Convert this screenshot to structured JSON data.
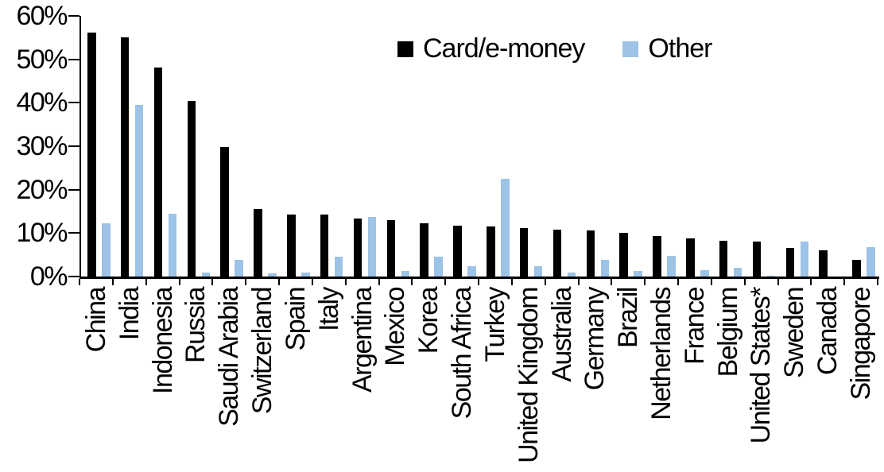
{
  "chart_data": {
    "type": "bar",
    "title": "",
    "xlabel": "",
    "ylabel": "",
    "ylim": [
      0,
      60
    ],
    "grid": false,
    "legend_position": "top-center",
    "yticks": [
      {
        "value": 0,
        "label": "0%"
      },
      {
        "value": 10,
        "label": "10%"
      },
      {
        "value": 20,
        "label": "20%"
      },
      {
        "value": 30,
        "label": "30%"
      },
      {
        "value": 40,
        "label": "40%"
      },
      {
        "value": 50,
        "label": "50%"
      },
      {
        "value": 60,
        "label": "60%"
      }
    ],
    "categories": [
      "China",
      "India",
      "Indonesia",
      "Russia",
      "Saudi Arabia",
      "Switzerland",
      "Spain",
      "Italy",
      "Argentina",
      "Mexico",
      "Korea",
      "South Africa",
      "Turkey",
      "United Kingdom",
      "Australia",
      "Germany",
      "Brazil",
      "Netherlands",
      "France",
      "Belgium",
      "United States*",
      "Sweden",
      "Canada",
      "Singapore"
    ],
    "series": [
      {
        "name": "Card/e-money",
        "color": "#000000",
        "values": [
          56.2,
          55.0,
          48.2,
          40.4,
          29.8,
          15.6,
          14.3,
          14.2,
          13.4,
          12.9,
          12.2,
          11.8,
          11.6,
          11.1,
          10.8,
          10.6,
          10.0,
          9.3,
          8.7,
          8.2,
          8.0,
          6.6,
          6.0,
          3.9
        ]
      },
      {
        "name": "Other",
        "color": "#9DC3E6",
        "values": [
          12.3,
          39.6,
          14.5,
          1.0,
          3.8,
          0.8,
          1.0,
          4.6,
          13.8,
          1.3,
          4.5,
          2.4,
          22.5,
          2.3,
          1.0,
          3.9,
          1.2,
          4.8,
          1.5,
          2.0,
          0.2,
          8.0,
          0.0,
          6.7
        ]
      }
    ]
  }
}
